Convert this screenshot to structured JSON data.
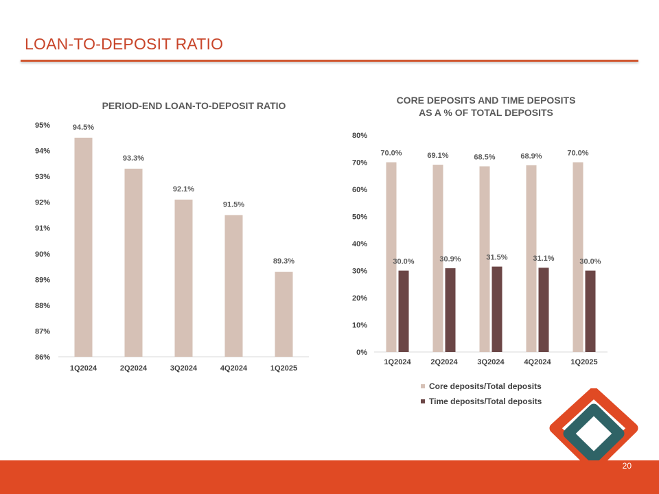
{
  "slide": {
    "title": "LOAN-TO-DEPOSIT RATIO",
    "page_number": "20",
    "accent_color": "#e04a24"
  },
  "logo": {
    "name": "company-logo",
    "colors": [
      "#e04a24",
      "#2f6366"
    ]
  },
  "chart_data": [
    {
      "type": "bar",
      "title": "PERIOD-END LOAN-TO-DEPOSIT RATIO",
      "categories": [
        "1Q2024",
        "2Q2024",
        "3Q2024",
        "4Q2024",
        "1Q2025"
      ],
      "values": [
        94.5,
        93.3,
        92.1,
        91.5,
        89.3
      ],
      "value_labels": [
        "94.5%",
        "93.3%",
        "92.1%",
        "91.5%",
        "89.3%"
      ],
      "ylim": [
        86,
        95
      ],
      "yticks": [
        "86%",
        "87%",
        "88%",
        "89%",
        "90%",
        "91%",
        "92%",
        "93%",
        "94%",
        "95%"
      ],
      "xlabel": "",
      "ylabel": "",
      "bar_color": "#d6c1b6",
      "grid": false
    },
    {
      "type": "bar",
      "title_lines": [
        "CORE DEPOSITS AND TIME DEPOSITS",
        "AS A % OF TOTAL DEPOSITS"
      ],
      "categories": [
        "1Q2024",
        "2Q2024",
        "3Q2024",
        "4Q2024",
        "1Q2025"
      ],
      "series": [
        {
          "name": "Core deposits/Total deposits",
          "values": [
            70.0,
            69.1,
            68.5,
            68.9,
            70.0
          ],
          "value_labels": [
            "70.0%",
            "69.1%",
            "68.5%",
            "68.9%",
            "70.0%"
          ],
          "color": "#d6c1b6"
        },
        {
          "name": "Time deposits/Total deposits",
          "values": [
            30.0,
            30.9,
            31.5,
            31.1,
            30.0
          ],
          "value_labels": [
            "30.0%",
            "30.9%",
            "31.5%",
            "31.1%",
            "30.0%"
          ],
          "color": "#6b4646"
        }
      ],
      "ylim": [
        0,
        80
      ],
      "yticks": [
        "0%",
        "10%",
        "20%",
        "30%",
        "40%",
        "50%",
        "60%",
        "70%",
        "80%"
      ],
      "legend_position": "bottom",
      "grid": false
    }
  ]
}
